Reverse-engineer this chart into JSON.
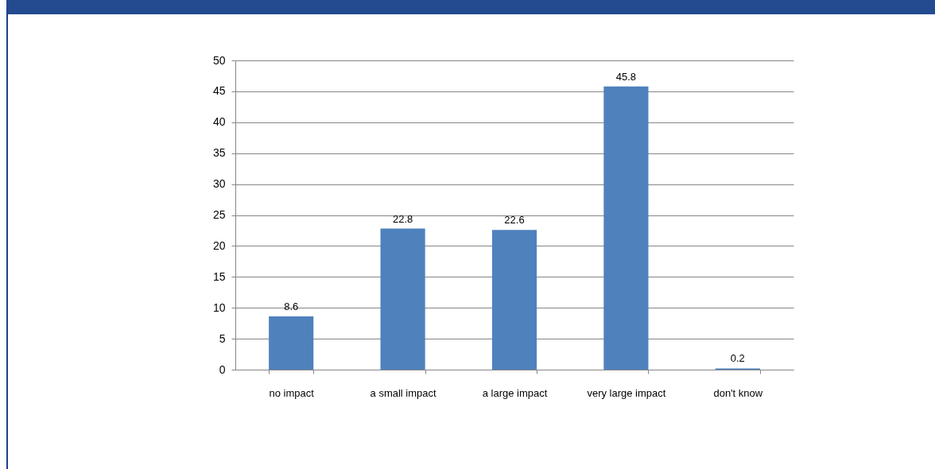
{
  "chart_data": {
    "type": "bar",
    "categories": [
      "no impact",
      "a small impact",
      "a large impact",
      "very large impact",
      "don't know"
    ],
    "values": [
      8.6,
      22.8,
      22.6,
      45.8,
      0.2
    ],
    "color": "#4f81bd",
    "ylim": [
      0,
      50
    ],
    "yticks": [
      0,
      5,
      10,
      15,
      20,
      25,
      30,
      35,
      40,
      45,
      50
    ],
    "grid": "y",
    "data_labels": true
  }
}
